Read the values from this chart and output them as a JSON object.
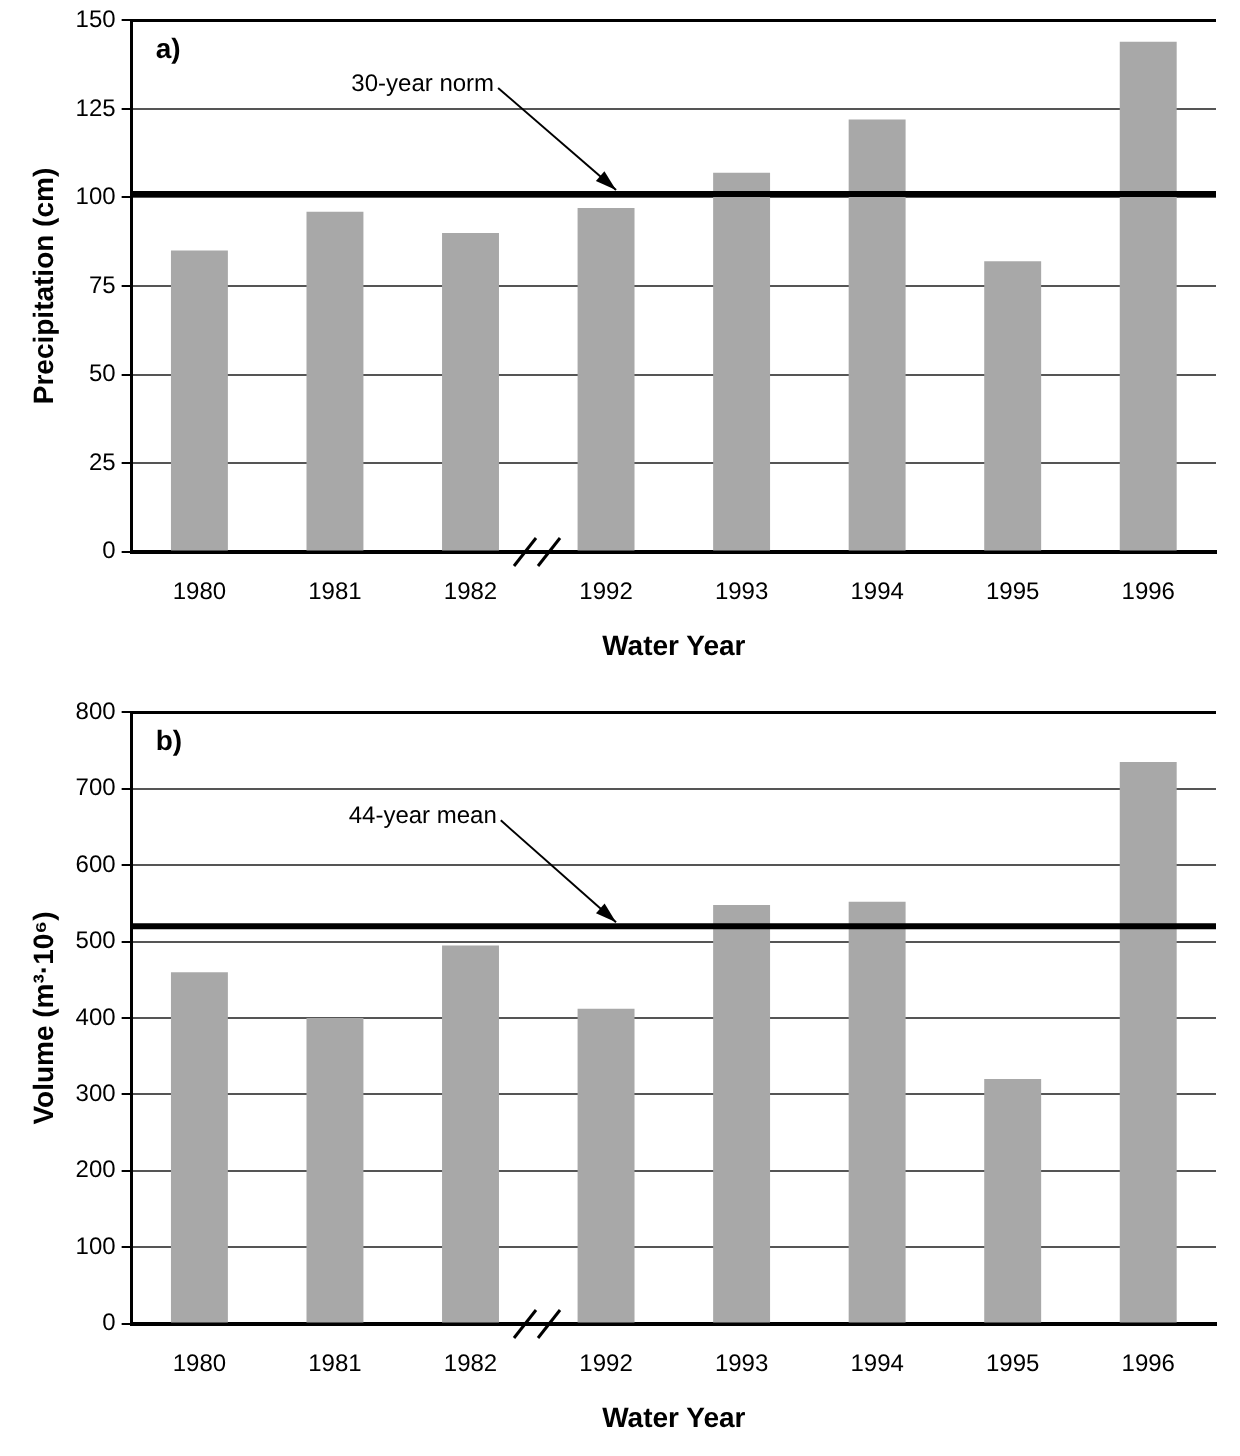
{
  "chart_data": [
    {
      "type": "bar",
      "categories": [
        "1980",
        "1981",
        "1982",
        "1992",
        "1993",
        "1994",
        "1995",
        "1996"
      ],
      "xlabel": "Water Year",
      "ylabel": "Precipitation (cm)",
      "values": [
        85,
        96,
        90,
        97,
        107,
        122,
        82,
        144
      ],
      "color": "#a8a8a8",
      "ylim": [
        0,
        150
      ],
      "yticks": [
        0,
        25,
        50,
        75,
        100,
        125,
        150
      ],
      "grid": "y",
      "legend": false,
      "ref_lines": [
        {
          "axis": "y",
          "value": 101,
          "label": "30-year norm",
          "color": "#000000"
        }
      ],
      "annotations": [
        "a)"
      ]
    },
    {
      "type": "bar",
      "categories": [
        "1980",
        "1981",
        "1982",
        "1992",
        "1993",
        "1994",
        "1995",
        "1996"
      ],
      "xlabel": "Water Year",
      "ylabel": "Volume (m³·10⁶)",
      "values": [
        460,
        400,
        495,
        412,
        548,
        552,
        320,
        735
      ],
      "color": "#a8a8a8",
      "ylim": [
        0,
        800
      ],
      "yticks": [
        0,
        100,
        200,
        300,
        400,
        500,
        600,
        700,
        800
      ],
      "grid": "y",
      "legend": false,
      "ref_lines": [
        {
          "axis": "y",
          "value": 520,
          "label": "44-year mean",
          "color": "#000000"
        }
      ],
      "annotations": [
        "b)"
      ]
    }
  ]
}
